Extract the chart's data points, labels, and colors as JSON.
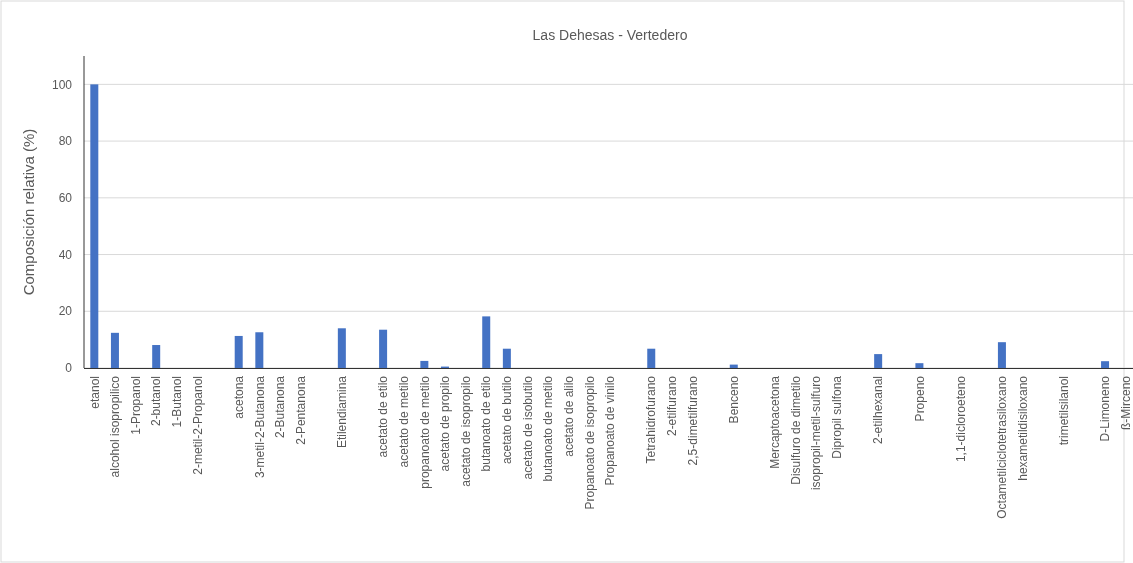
{
  "chart_data": {
    "type": "bar",
    "title": "Las Dehesas - Vertedero",
    "ylabel": "Composición relativa (%)",
    "categories": [
      "etanol",
      "alcohol isopropilico",
      "1-Propanol",
      "2-butanol",
      "1-Butanol",
      "2-metil-2-Propanol",
      null,
      "acetona",
      "3-metil-2-Butanona",
      "2-Butanona",
      "2-Pentanona",
      null,
      "Etilendiamina",
      null,
      "acetato de etilo",
      "acetato de metilo",
      "propanoato de metilo",
      "acetato de propilo",
      "acetato de isopropilo",
      "butanoato de etilo",
      "acetato de butilo",
      "acetato de isobutilo",
      "butanoato de metilo",
      "acetato de alilo",
      "Propanoato de isopropilo",
      "Propanoato de vinilo",
      null,
      "Tetrahidrofurano",
      "2-etilfurano",
      "2,5-dimetilfurano",
      null,
      "Benceno",
      null,
      "Mercaptoacetona",
      "Disulfuro de dimetilo",
      "isopropil-metil-sulfuro",
      "Dipropil sulfona",
      null,
      "2-etilhexanal",
      null,
      "Propeno",
      null,
      "1,1-dicloroeteno",
      null,
      "Octametilciclotetrasiloxano",
      "hexametildisiloxano",
      null,
      "trimetilsilanol",
      null,
      "D-Limoneno",
      "ß-Mirceno"
    ],
    "values": [
      100,
      12.4,
      0,
      8.1,
      0,
      0,
      null,
      11.3,
      12.6,
      0,
      0,
      null,
      14,
      null,
      13.5,
      0,
      2.5,
      0.5,
      0,
      18.2,
      6.8,
      0,
      0,
      0,
      0,
      0,
      null,
      6.8,
      0,
      0,
      null,
      1.2,
      null,
      0,
      0,
      0,
      0,
      null,
      4.9,
      null,
      1.7,
      null,
      0,
      null,
      9.1,
      0,
      null,
      0,
      null,
      2.4,
      0
    ],
    "color": "#4472c4",
    "ylim": [
      0,
      110
    ],
    "yticks": [
      0,
      20,
      40,
      60,
      80,
      100
    ],
    "grid": "y"
  }
}
